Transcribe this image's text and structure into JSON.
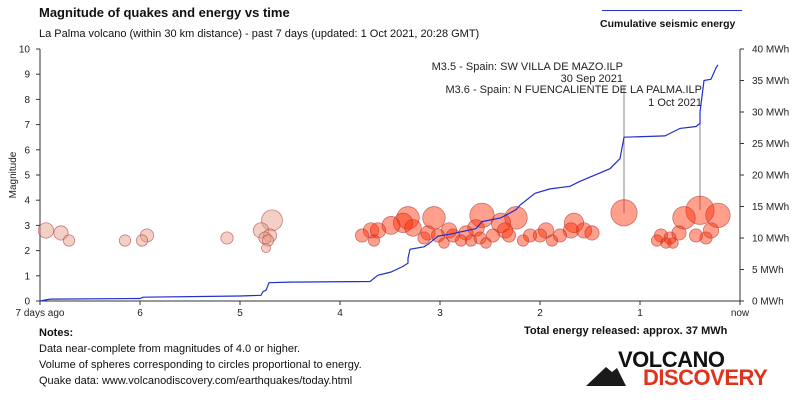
{
  "header": {
    "title": "Magnitude of quakes and energy vs time",
    "subtitle": "La Palma volcano (within 30 km distance) - past 7 days (updated: 1 Oct 2021, 20:28 GMT)"
  },
  "legend": {
    "energy_label": "Cumulative seismic energy"
  },
  "notes": {
    "heading": "Notes:",
    "line1": "Data near-complete from magnitudes of 4.0 or higher.",
    "line2": "Volume of spheres corresponding to circles proportional to energy.",
    "line3": "Quake data: www.volcanodiscovery.com/earthquakes/today.html"
  },
  "total_energy": "Total energy released: approx. 37 MWh",
  "logo": {
    "line1": "VOLCANO",
    "line2": "DISCOVERY"
  },
  "colors": {
    "energy_line": "#1f2fd0",
    "quake_old": "#e8a08c",
    "quake_new": "#ff2a00",
    "annotation_line": "#888888"
  },
  "chart_data": {
    "type": "scatter",
    "title": "Magnitude of quakes and energy vs time",
    "xlabel": "",
    "ylabel": "Magnitude",
    "xlim": [
      7,
      0
    ],
    "ylim": [
      0,
      10
    ],
    "y2lim": [
      0,
      40
    ],
    "x_tick_labels": [
      "7 days ago",
      "6",
      "5",
      "4",
      "3",
      "2",
      "1",
      "now"
    ],
    "x_tick_values": [
      7,
      6,
      5,
      4,
      3,
      2,
      1,
      0
    ],
    "y_ticks": [
      0,
      1,
      2,
      3,
      4,
      5,
      6,
      7,
      8,
      9,
      10
    ],
    "y2_tick_labels": [
      "0 MWh",
      "5 MWh",
      "10 MWh",
      "15 MWh",
      "20 MWh",
      "25 MWh",
      "30 MWh",
      "35 MWh",
      "40 MWh"
    ],
    "y2_tick_values": [
      0,
      5,
      10,
      15,
      20,
      25,
      30,
      35,
      40
    ],
    "quakes": [
      {
        "days_ago": 6.94,
        "mag": 2.8
      },
      {
        "days_ago": 6.79,
        "mag": 2.7
      },
      {
        "days_ago": 6.71,
        "mag": 2.4
      },
      {
        "days_ago": 6.15,
        "mag": 2.4
      },
      {
        "days_ago": 5.98,
        "mag": 2.4
      },
      {
        "days_ago": 5.93,
        "mag": 2.6
      },
      {
        "days_ago": 5.13,
        "mag": 2.5
      },
      {
        "days_ago": 4.79,
        "mag": 2.8
      },
      {
        "days_ago": 4.75,
        "mag": 2.5
      },
      {
        "days_ago": 4.74,
        "mag": 2.1
      },
      {
        "days_ago": 4.72,
        "mag": 2.4
      },
      {
        "days_ago": 4.7,
        "mag": 2.6
      },
      {
        "days_ago": 4.68,
        "mag": 3.2
      },
      {
        "days_ago": 3.78,
        "mag": 2.6
      },
      {
        "days_ago": 3.69,
        "mag": 2.8
      },
      {
        "days_ago": 3.66,
        "mag": 2.4
      },
      {
        "days_ago": 3.62,
        "mag": 2.8
      },
      {
        "days_ago": 3.49,
        "mag": 3.0
      },
      {
        "days_ago": 3.37,
        "mag": 3.1
      },
      {
        "days_ago": 3.32,
        "mag": 3.3
      },
      {
        "days_ago": 3.27,
        "mag": 2.9
      },
      {
        "days_ago": 3.16,
        "mag": 2.5
      },
      {
        "days_ago": 3.12,
        "mag": 2.7
      },
      {
        "days_ago": 3.06,
        "mag": 3.3
      },
      {
        "days_ago": 3.02,
        "mag": 2.6
      },
      {
        "days_ago": 2.96,
        "mag": 2.3
      },
      {
        "days_ago": 2.91,
        "mag": 2.8
      },
      {
        "days_ago": 2.87,
        "mag": 2.6
      },
      {
        "days_ago": 2.79,
        "mag": 2.4
      },
      {
        "days_ago": 2.74,
        "mag": 2.7
      },
      {
        "days_ago": 2.69,
        "mag": 2.4
      },
      {
        "days_ago": 2.64,
        "mag": 2.9
      },
      {
        "days_ago": 2.6,
        "mag": 2.5
      },
      {
        "days_ago": 2.58,
        "mag": 3.4
      },
      {
        "days_ago": 2.54,
        "mag": 2.3
      },
      {
        "days_ago": 2.47,
        "mag": 2.6
      },
      {
        "days_ago": 2.39,
        "mag": 3.1
      },
      {
        "days_ago": 2.35,
        "mag": 2.8
      },
      {
        "days_ago": 2.31,
        "mag": 2.6
      },
      {
        "days_ago": 2.24,
        "mag": 3.3
      },
      {
        "days_ago": 2.17,
        "mag": 2.4
      },
      {
        "days_ago": 2.1,
        "mag": 2.6
      },
      {
        "days_ago": 2.0,
        "mag": 2.6
      },
      {
        "days_ago": 1.94,
        "mag": 2.8
      },
      {
        "days_ago": 1.88,
        "mag": 2.4
      },
      {
        "days_ago": 1.8,
        "mag": 2.6
      },
      {
        "days_ago": 1.69,
        "mag": 2.8
      },
      {
        "days_ago": 1.66,
        "mag": 3.1
      },
      {
        "days_ago": 1.56,
        "mag": 2.8
      },
      {
        "days_ago": 1.48,
        "mag": 2.7
      },
      {
        "days_ago": 1.16,
        "mag": 3.5
      },
      {
        "days_ago": 0.83,
        "mag": 2.4
      },
      {
        "days_ago": 0.79,
        "mag": 2.6
      },
      {
        "days_ago": 0.74,
        "mag": 2.3
      },
      {
        "days_ago": 0.7,
        "mag": 2.5
      },
      {
        "days_ago": 0.67,
        "mag": 2.3
      },
      {
        "days_ago": 0.61,
        "mag": 2.7
      },
      {
        "days_ago": 0.56,
        "mag": 3.3
      },
      {
        "days_ago": 0.44,
        "mag": 2.6
      },
      {
        "days_ago": 0.4,
        "mag": 3.6
      },
      {
        "days_ago": 0.34,
        "mag": 2.5
      },
      {
        "days_ago": 0.29,
        "mag": 2.8
      },
      {
        "days_ago": 0.22,
        "mag": 3.4
      }
    ],
    "cumulative_energy": {
      "unit": "MWh",
      "points": [
        [
          7,
          0
        ],
        [
          6.9,
          0.3
        ],
        [
          6.0,
          0.4
        ],
        [
          5.97,
          0.6
        ],
        [
          5.0,
          0.8
        ],
        [
          4.79,
          0.9
        ],
        [
          4.77,
          1.5
        ],
        [
          4.74,
          1.7
        ],
        [
          4.71,
          2.9
        ],
        [
          4.5,
          3.0
        ],
        [
          3.7,
          3.1
        ],
        [
          3.66,
          3.6
        ],
        [
          3.62,
          4.1
        ],
        [
          3.49,
          4.6
        ],
        [
          3.37,
          5.5
        ],
        [
          3.32,
          6.0
        ],
        [
          3.32,
          6.8
        ],
        [
          3.3,
          8.2
        ],
        [
          3.16,
          8.6
        ],
        [
          3.12,
          9.0
        ],
        [
          3.06,
          9.8
        ],
        [
          3.02,
          10.3
        ],
        [
          2.9,
          10.6
        ],
        [
          2.64,
          11.5
        ],
        [
          2.58,
          12.6
        ],
        [
          2.39,
          13.2
        ],
        [
          2.24,
          14.5
        ],
        [
          2.2,
          15.2
        ],
        [
          2.05,
          17.1
        ],
        [
          1.9,
          17.8
        ],
        [
          1.7,
          18.2
        ],
        [
          1.6,
          19.0
        ],
        [
          1.3,
          21.0
        ],
        [
          1.2,
          22.6
        ],
        [
          1.16,
          26.0
        ],
        [
          0.75,
          26.2
        ],
        [
          0.6,
          27.4
        ],
        [
          0.44,
          27.7
        ],
        [
          0.4,
          28.2
        ],
        [
          0.4,
          30.0
        ],
        [
          0.36,
          35.0
        ],
        [
          0.29,
          35.2
        ],
        [
          0.24,
          37.0
        ],
        [
          0.22,
          37.5
        ]
      ]
    },
    "annotations": [
      {
        "days_ago": 1.16,
        "mag": 3.5,
        "lines": [
          "M3.5 - Spain: SW VILLA DE MAZO.ILP",
          "30 Sep 2021"
        ]
      },
      {
        "days_ago": 0.4,
        "mag": 3.6,
        "lines": [
          "M3.6 - Spain: N FUENCALIENTE DE LA PALMA.ILP",
          "1 Oct 2021"
        ]
      }
    ],
    "legend_position": "top-right",
    "grid": false
  }
}
